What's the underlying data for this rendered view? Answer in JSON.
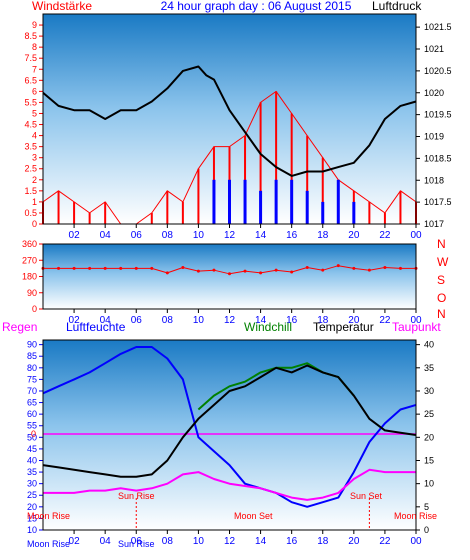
{
  "header": {
    "left_label": "Windstärke",
    "title": "24 hour graph day : 06 August 2015",
    "right_label": "Luftdruck"
  },
  "panel2": {
    "compass": [
      "N",
      "W",
      "S",
      "O",
      "N"
    ]
  },
  "panel3_header": {
    "regen": "Regen",
    "luftfeuchte": "Luftfeuchte",
    "windchill": "Windchill",
    "temperatur": "Temperatur",
    "taupunkt": "Taupunkt"
  },
  "colors": {
    "wind": "#ff0000",
    "gust": "#0000ff",
    "pressure": "#000000",
    "direction": "#ff0000",
    "humidity": "#0000ff",
    "windchill": "#008000",
    "temperature": "#000000",
    "dewpoint": "#ff00ff",
    "zero_line": "#ff00ff",
    "title": "#0000ff"
  },
  "chart_data": [
    {
      "type": "line",
      "name_series": "wind_pressure",
      "x_ticks": [
        "02",
        "04",
        "06",
        "08",
        "10",
        "12",
        "14",
        "16",
        "18",
        "20",
        "22",
        "00"
      ],
      "left_axis": {
        "ticks": [
          0,
          0.5,
          1,
          1.5,
          2,
          2.5,
          3,
          3.5,
          4,
          4.5,
          5,
          5.5,
          6,
          6.5,
          7,
          7.5,
          8,
          8.5,
          9
        ],
        "ylim": [
          0,
          9.5
        ]
      },
      "right_axis": {
        "ticks": [
          1017,
          1017.5,
          1018,
          1018.5,
          1019,
          1019.5,
          1020,
          1020.5,
          1021,
          1021.5
        ],
        "ylim": [
          1017,
          1021.8
        ]
      },
      "series": [
        {
          "name": "pressure",
          "x": [
            0,
            1,
            2,
            3,
            4,
            5,
            6,
            7,
            8,
            9,
            10,
            10.5,
            11,
            12,
            13,
            14,
            15,
            16,
            17,
            18,
            19,
            20,
            21,
            22,
            23,
            24
          ],
          "values": [
            1020,
            1019.7,
            1019.6,
            1019.6,
            1019.4,
            1019.6,
            1019.6,
            1019.8,
            1020.1,
            1020.5,
            1020.6,
            1020.4,
            1020.3,
            1019.6,
            1019.1,
            1018.6,
            1018.3,
            1018.1,
            1018.2,
            1018.2,
            1018.3,
            1018.4,
            1018.8,
            1019.4,
            1019.7,
            1019.8
          ]
        },
        {
          "name": "wind",
          "x": [
            0,
            1,
            2,
            3,
            4,
            5,
            6,
            7,
            8,
            9,
            10,
            11,
            12,
            13,
            14,
            15,
            16,
            17,
            18,
            19,
            20,
            21,
            22,
            23,
            24
          ],
          "values": [
            1,
            1.5,
            1,
            0.5,
            1,
            0,
            0,
            0.5,
            1.5,
            1,
            2.5,
            3.5,
            3.5,
            4,
            5.5,
            6,
            5,
            4,
            3,
            2,
            1.5,
            1,
            0.5,
            1.5,
            1
          ]
        },
        {
          "name": "gust",
          "x": [
            10,
            11,
            12,
            13,
            14,
            15,
            16,
            17,
            18,
            19,
            20,
            21
          ],
          "values": [
            0,
            2,
            2,
            2,
            1.5,
            2,
            2,
            1.5,
            1,
            2,
            1,
            0
          ]
        }
      ]
    },
    {
      "type": "line",
      "name_series": "wind_direction",
      "x_ticks": [
        "02",
        "04",
        "06",
        "08",
        "10",
        "12",
        "14",
        "16",
        "18",
        "20",
        "22",
        "00"
      ],
      "y_ticks": [
        0,
        90,
        180,
        270,
        360
      ],
      "ylim": [
        0,
        360
      ],
      "series": [
        {
          "name": "direction",
          "x": [
            0,
            1,
            2,
            3,
            4,
            5,
            6,
            7,
            8,
            9,
            10,
            11,
            12,
            13,
            14,
            15,
            16,
            17,
            18,
            19,
            20,
            21,
            22,
            23,
            24
          ],
          "values": [
            225,
            225,
            225,
            225,
            225,
            225,
            225,
            225,
            200,
            230,
            210,
            215,
            195,
            210,
            200,
            215,
            205,
            230,
            215,
            240,
            225,
            215,
            230,
            225,
            225
          ]
        }
      ]
    },
    {
      "type": "line",
      "name_series": "climate",
      "x_ticks": [
        "02",
        "04",
        "06",
        "08",
        "10",
        "12",
        "14",
        "16",
        "18",
        "20",
        "22",
        "00"
      ],
      "left_axis": {
        "ticks": [
          10,
          15,
          20,
          25,
          30,
          35,
          40,
          45,
          50,
          55,
          60,
          65,
          70,
          75,
          80,
          85,
          90
        ],
        "ylim": [
          10,
          92
        ]
      },
      "right_axis": {
        "ticks": [
          0,
          5,
          10,
          15,
          20,
          25,
          30,
          35,
          40
        ],
        "ylim": [
          0,
          41
        ]
      },
      "annotations": {
        "zero_label": "0",
        "sun_rise": "Sun Rise",
        "sun_set": "Sun Set",
        "moon_rise_left": "Moon Rise",
        "moon_set": "Moon Set",
        "moon_rise_right": "Moon Rise",
        "bottom_moon_rise": "Moon Rise",
        "bottom_sun_rise": "Sun Rise"
      },
      "series": [
        {
          "name": "humidity",
          "x": [
            0,
            1,
            2,
            3,
            4,
            5,
            6,
            7,
            8,
            9,
            10,
            11,
            12,
            13,
            14,
            15,
            16,
            17,
            18,
            19,
            20,
            21,
            22,
            23,
            24
          ],
          "values": [
            69,
            72,
            75,
            78,
            82,
            86,
            89,
            89,
            84,
            75,
            50,
            44,
            38,
            30,
            28,
            26,
            22,
            20,
            22,
            24,
            35,
            48,
            56,
            62,
            64
          ]
        },
        {
          "name": "temperature",
          "x": [
            0,
            1,
            2,
            3,
            4,
            5,
            6,
            7,
            8,
            9,
            10,
            11,
            12,
            13,
            14,
            15,
            16,
            17,
            18,
            19,
            20,
            21,
            22,
            23,
            24
          ],
          "values": [
            14,
            13.5,
            13,
            12.5,
            12,
            11.5,
            11.5,
            12,
            15,
            20,
            24,
            27,
            30,
            31,
            33,
            35,
            34,
            35.5,
            34,
            33,
            29,
            24,
            21.5,
            21,
            20.5
          ]
        },
        {
          "name": "windchill",
          "x": [
            10,
            11,
            12,
            13,
            14,
            15,
            16,
            17,
            18,
            19,
            20
          ],
          "values": [
            26,
            29,
            31,
            32,
            34,
            35,
            35,
            36,
            34,
            33,
            29
          ]
        },
        {
          "name": "dewpoint",
          "x": [
            0,
            1,
            2,
            3,
            4,
            5,
            6,
            7,
            8,
            9,
            10,
            11,
            12,
            13,
            14,
            15,
            16,
            17,
            18,
            19,
            20,
            21,
            22,
            23,
            24
          ],
          "values": [
            8,
            8,
            8,
            8.5,
            8.5,
            9,
            8.5,
            9,
            10,
            12,
            12.5,
            11,
            10,
            9.5,
            9,
            8,
            7,
            6.5,
            7,
            8,
            11,
            13,
            12.5,
            12.5,
            12.5
          ]
        }
      ]
    }
  ]
}
